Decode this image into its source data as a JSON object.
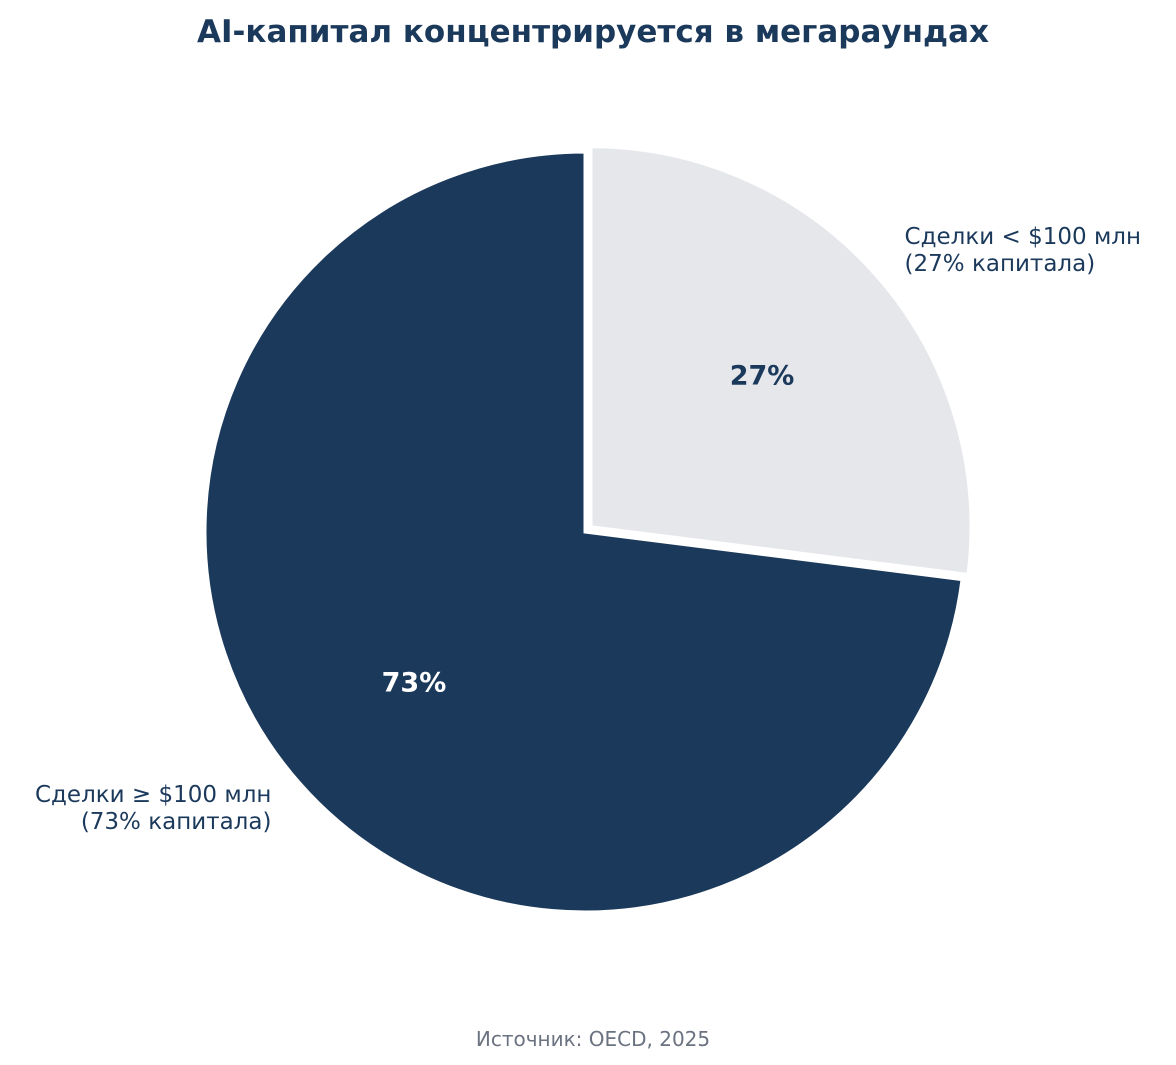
{
  "chart_data": {
    "type": "pie",
    "title": "AI-капитал концентрируется в мегараундах",
    "slices": [
      {
        "label_lines": [
          "Сделки < $100 млн",
          "(27% капитала)"
        ],
        "value": 27,
        "pct_label": "27%",
        "color": "#e5e7eb",
        "pct_color": "#1b395b",
        "exploded": true
      },
      {
        "label_lines": [
          "Сделки ≥ $100 млн",
          "(73% капитала)"
        ],
        "value": 73,
        "pct_label": "73%",
        "color": "#1b395b",
        "pct_color": "#ffffff",
        "exploded": false
      }
    ],
    "start_angle": "12 o'clock",
    "direction": "clockwise",
    "source": "Источник: OECD, 2025"
  },
  "colors": {
    "title": "#1b395b",
    "label": "#1b395b",
    "source": "#6b7280",
    "background": "#ffffff",
    "separator": "#ffffff"
  }
}
